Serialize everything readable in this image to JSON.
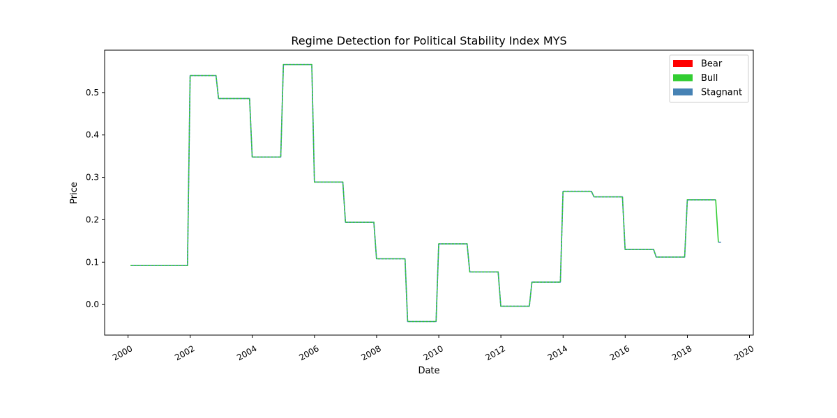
{
  "chart_data": {
    "type": "line",
    "title": "Regime Detection for Political Stability Index MYS",
    "xlabel": "Date",
    "ylabel": "Price",
    "x_ticks": [
      "2000",
      "2002",
      "2004",
      "2006",
      "2008",
      "2010",
      "2012",
      "2014",
      "2016",
      "2018",
      "2020"
    ],
    "y_ticks": [
      "0.0",
      "0.1",
      "0.2",
      "0.3",
      "0.4",
      "0.5"
    ],
    "xlim": [
      "1999-04-01",
      "2020-02-15"
    ],
    "ylim": [
      -0.072,
      0.6
    ],
    "grid": false,
    "legend": {
      "placement": "top-right",
      "entries": [
        {
          "name": "Bear",
          "color": "#ff0000"
        },
        {
          "name": "Bull",
          "color": "#32cd32"
        },
        {
          "name": "Stagnant",
          "color": "#4682b4"
        }
      ]
    },
    "series": [
      {
        "regime": "Stagnant",
        "color": "#4682b4",
        "style": "solid",
        "points": [
          [
            "2000-01-31",
            0.092
          ],
          [
            "2001-11-30",
            0.092
          ],
          [
            "2001-12-31",
            0.54
          ],
          [
            "2002-10-31",
            0.54
          ],
          [
            "2002-11-30",
            0.486
          ],
          [
            "2003-11-30",
            0.486
          ],
          [
            "2003-12-31",
            0.348
          ],
          [
            "2004-11-30",
            0.348
          ],
          [
            "2004-12-31",
            0.566
          ],
          [
            "2005-11-30",
            0.566
          ],
          [
            "2005-12-31",
            0.289
          ],
          [
            "2006-11-30",
            0.289
          ],
          [
            "2006-12-31",
            0.194
          ],
          [
            "2007-11-30",
            0.194
          ],
          [
            "2007-12-31",
            0.108
          ],
          [
            "2008-11-30",
            0.108
          ],
          [
            "2008-12-31",
            -0.04
          ],
          [
            "2009-11-30",
            -0.04
          ],
          [
            "2009-12-31",
            0.143
          ],
          [
            "2010-11-30",
            0.143
          ],
          [
            "2010-12-31",
            0.077
          ],
          [
            "2011-11-30",
            0.077
          ],
          [
            "2011-12-31",
            -0.004
          ],
          [
            "2012-11-30",
            -0.004
          ],
          [
            "2012-12-31",
            0.053
          ],
          [
            "2013-11-30",
            0.053
          ],
          [
            "2013-12-31",
            0.267
          ],
          [
            "2014-11-30",
            0.267
          ],
          [
            "2014-12-31",
            0.254
          ],
          [
            "2015-11-30",
            0.254
          ],
          [
            "2015-12-31",
            0.13
          ],
          [
            "2016-11-30",
            0.13
          ],
          [
            "2016-12-31",
            0.112
          ],
          [
            "2017-11-30",
            0.112
          ],
          [
            "2017-12-31",
            0.247
          ],
          [
            "2018-11-30",
            0.247
          ]
        ]
      },
      {
        "regime": "Bull",
        "color": "#32cd32",
        "style": "dashed",
        "points": [
          [
            "2000-01-31",
            0.092
          ],
          [
            "2001-11-30",
            0.092
          ],
          [
            "2001-12-31",
            0.54
          ],
          [
            "2002-10-31",
            0.54
          ],
          [
            "2002-11-30",
            0.486
          ],
          [
            "2003-11-30",
            0.486
          ],
          [
            "2003-12-31",
            0.348
          ],
          [
            "2004-11-30",
            0.348
          ],
          [
            "2004-12-31",
            0.566
          ],
          [
            "2005-11-30",
            0.566
          ],
          [
            "2005-12-31",
            0.289
          ],
          [
            "2006-11-30",
            0.289
          ],
          [
            "2006-12-31",
            0.194
          ],
          [
            "2007-11-30",
            0.194
          ],
          [
            "2007-12-31",
            0.108
          ],
          [
            "2008-11-30",
            0.108
          ],
          [
            "2008-12-31",
            -0.04
          ],
          [
            "2009-11-30",
            -0.04
          ],
          [
            "2009-12-31",
            0.143
          ],
          [
            "2010-11-30",
            0.143
          ],
          [
            "2010-12-31",
            0.077
          ],
          [
            "2011-11-30",
            0.077
          ],
          [
            "2011-12-31",
            -0.004
          ],
          [
            "2012-11-30",
            -0.004
          ],
          [
            "2012-12-31",
            0.053
          ],
          [
            "2013-11-30",
            0.053
          ],
          [
            "2013-12-31",
            0.267
          ],
          [
            "2014-11-30",
            0.267
          ],
          [
            "2014-12-31",
            0.254
          ],
          [
            "2015-11-30",
            0.254
          ],
          [
            "2015-12-31",
            0.13
          ],
          [
            "2016-11-30",
            0.13
          ],
          [
            "2016-12-31",
            0.112
          ],
          [
            "2017-11-30",
            0.112
          ],
          [
            "2017-12-31",
            0.247
          ],
          [
            "2018-11-30",
            0.247
          ]
        ]
      },
      {
        "regime": "Bull",
        "color": "#32cd32",
        "style": "solid",
        "points": [
          [
            "2018-11-30",
            0.247
          ],
          [
            "2018-12-31",
            0.147
          ]
        ]
      },
      {
        "regime": "Stagnant",
        "color": "#4682b4",
        "style": "solid",
        "points": [
          [
            "2018-12-31",
            0.147
          ],
          [
            "2019-01-31",
            0.147
          ]
        ]
      }
    ]
  }
}
